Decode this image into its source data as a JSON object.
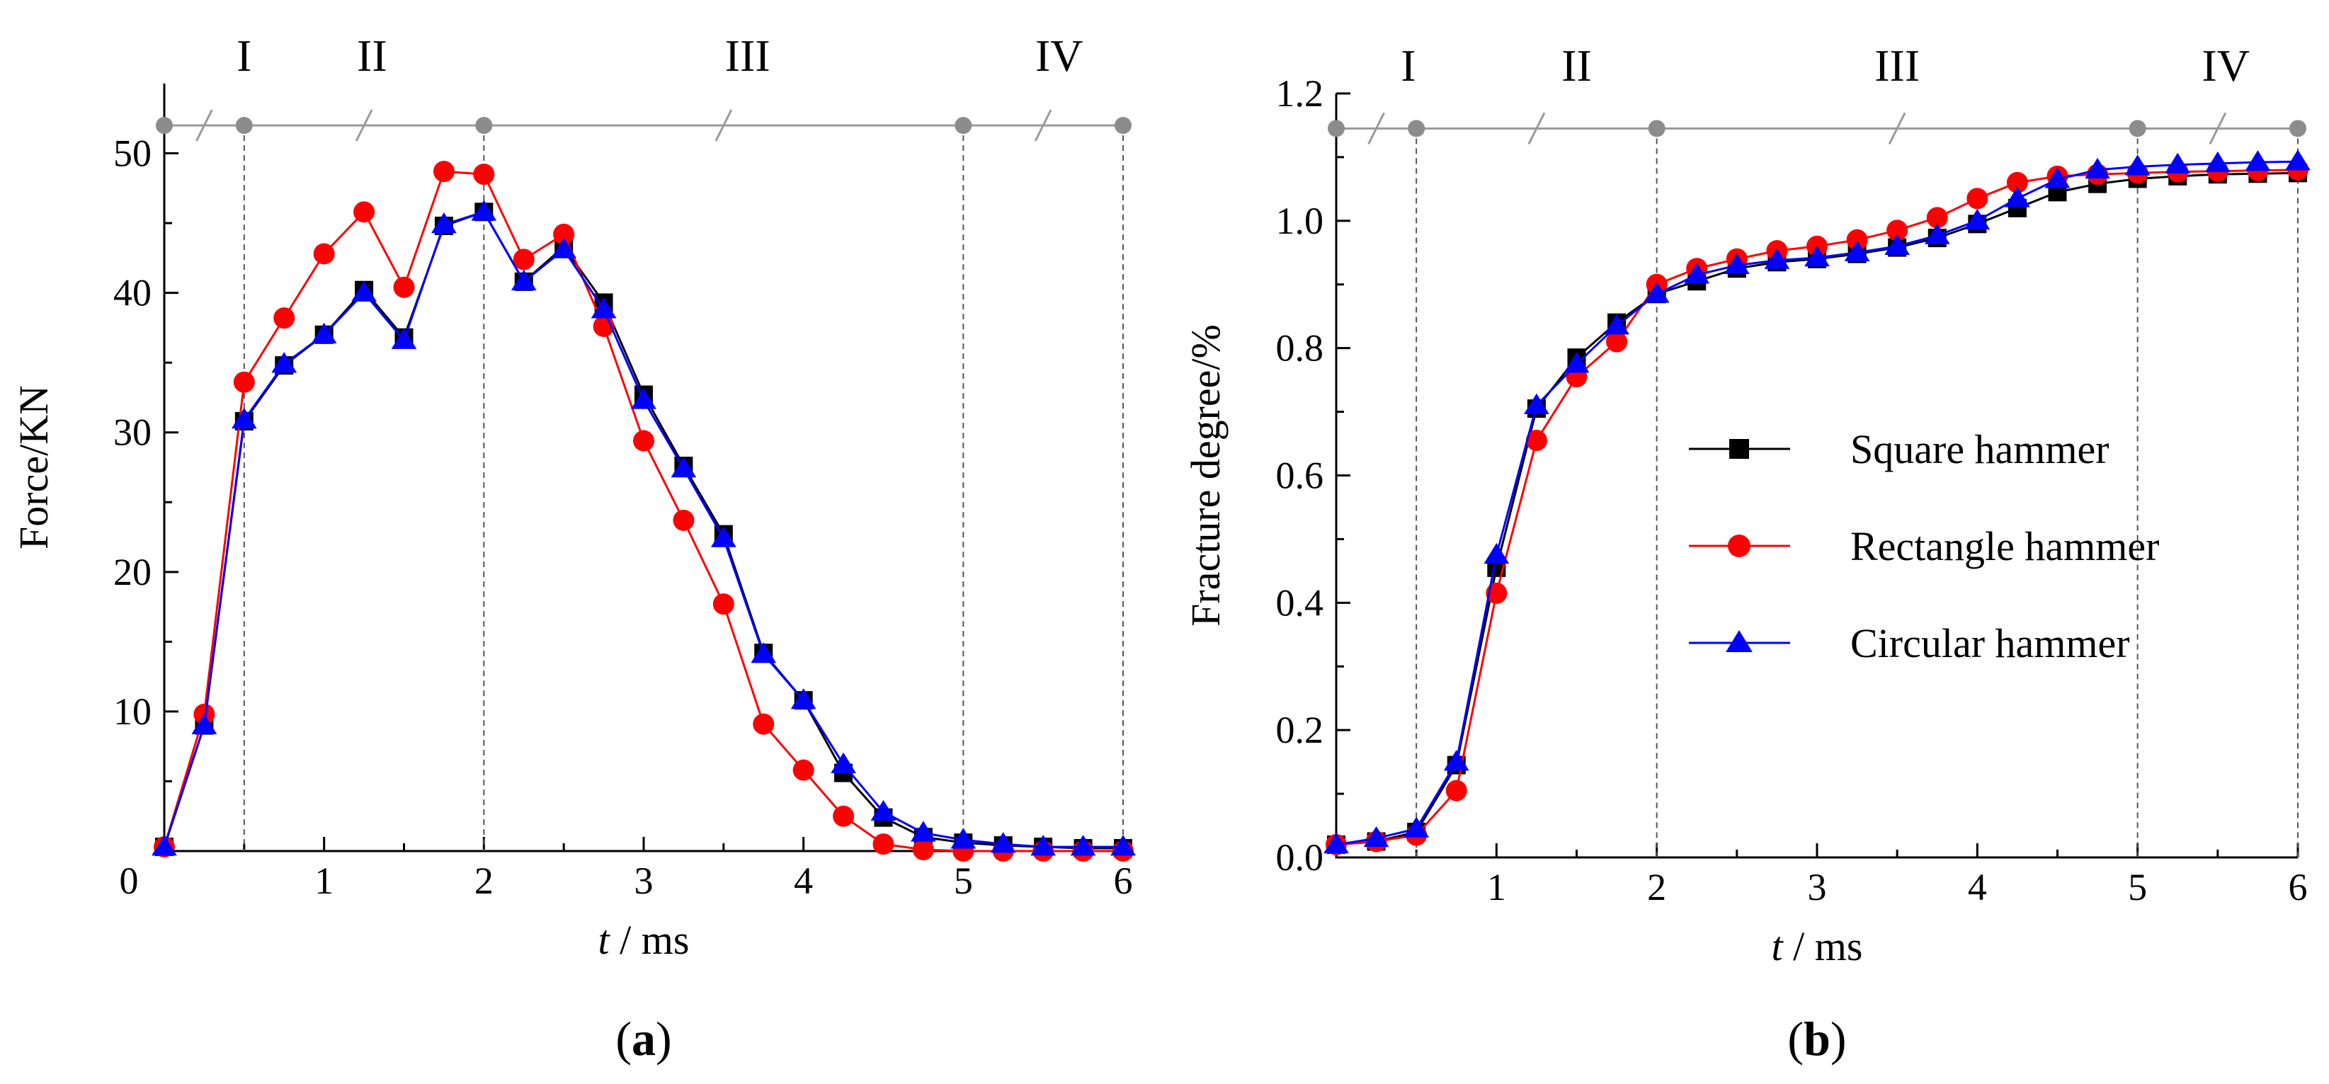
{
  "chart_data": [
    {
      "type": "line",
      "panel_label": "a",
      "title": "",
      "xlabel_italic": "t",
      "xlabel_unit": " / ms",
      "ylabel": "Force/KN",
      "xlim": [
        0,
        6
      ],
      "ylim": [
        0,
        55
      ],
      "x_ticks": [
        1,
        2,
        3,
        4,
        5,
        6
      ],
      "y_ticks": [
        10,
        20,
        30,
        40,
        50
      ],
      "origin_label": "0",
      "stage_boundaries": [
        0,
        0.5,
        2,
        5,
        6
      ],
      "stage_line_value": 52,
      "stages": [
        {
          "label": "I",
          "center": 0.5
        },
        {
          "label": "II",
          "center": 1.3
        },
        {
          "label": "III",
          "center": 3.65
        },
        {
          "label": "IV",
          "center": 5.6
        }
      ],
      "x": [
        0,
        0.25,
        0.5,
        0.75,
        1.0,
        1.25,
        1.5,
        1.75,
        2.0,
        2.25,
        2.5,
        2.75,
        3.0,
        3.25,
        3.5,
        3.75,
        4.0,
        4.25,
        4.5,
        4.75,
        5.0,
        5.25,
        5.5,
        5.75,
        6.0
      ],
      "series": [
        {
          "name": "Square hammer",
          "color": "#000000",
          "marker": "square",
          "values": [
            0.3,
            9.0,
            30.8,
            34.8,
            37.0,
            40.2,
            36.8,
            44.8,
            45.8,
            40.8,
            43.3,
            39.3,
            32.7,
            27.6,
            22.7,
            14.2,
            10.8,
            5.6,
            2.4,
            1.0,
            0.6,
            0.4,
            0.3,
            0.2,
            0.2
          ]
        },
        {
          "name": "Rectangle hammer",
          "color": "#ff0000",
          "marker": "circle",
          "values": [
            0.3,
            9.8,
            33.6,
            38.2,
            42.8,
            45.8,
            40.4,
            48.7,
            48.5,
            42.4,
            44.2,
            37.6,
            29.4,
            23.7,
            17.7,
            9.1,
            5.8,
            2.5,
            0.5,
            0.1,
            0.0,
            0.0,
            0.0,
            0.0,
            0.0
          ]
        },
        {
          "name": "Circular hammer",
          "color": "#0000ff",
          "marker": "triangle",
          "values": [
            0.3,
            9.0,
            30.9,
            34.9,
            37.0,
            40.0,
            36.6,
            44.9,
            45.8,
            40.8,
            43.1,
            38.8,
            32.3,
            27.4,
            22.4,
            14.1,
            10.8,
            6.2,
            2.8,
            1.3,
            0.8,
            0.5,
            0.3,
            0.3,
            0.3
          ]
        }
      ]
    },
    {
      "type": "line",
      "panel_label": "b",
      "title": "",
      "xlabel_italic": "t",
      "xlabel_unit": " / ms",
      "ylabel": "Fracture degree/%",
      "xlim": [
        0,
        6
      ],
      "ylim": [
        0,
        1.2
      ],
      "x_ticks": [
        1,
        2,
        3,
        4,
        5,
        6
      ],
      "y_ticks": [
        "0.0",
        "0.2",
        "0.4",
        "0.6",
        "0.8",
        "1.0",
        "1.2"
      ],
      "stage_boundaries": [
        0,
        0.5,
        2,
        5,
        6
      ],
      "stage_line_value": 1.145,
      "stages": [
        {
          "label": "I",
          "center": 0.45
        },
        {
          "label": "II",
          "center": 1.5
        },
        {
          "label": "III",
          "center": 3.5
        },
        {
          "label": "IV",
          "center": 5.55
        }
      ],
      "legend_position": "center-right",
      "x": [
        0,
        0.25,
        0.5,
        0.75,
        1.0,
        1.25,
        1.5,
        1.75,
        2.0,
        2.25,
        2.5,
        2.75,
        3.0,
        3.25,
        3.5,
        3.75,
        4.0,
        4.25,
        4.5,
        4.75,
        5.0,
        5.25,
        5.5,
        5.75,
        6.0
      ],
      "series": [
        {
          "name": "Square hammer",
          "color": "#000000",
          "marker": "square",
          "values": [
            0.02,
            0.025,
            0.04,
            0.145,
            0.455,
            0.705,
            0.785,
            0.84,
            0.885,
            0.905,
            0.925,
            0.935,
            0.94,
            0.948,
            0.958,
            0.973,
            0.995,
            1.02,
            1.045,
            1.058,
            1.066,
            1.07,
            1.073,
            1.074,
            1.075
          ]
        },
        {
          "name": "Rectangle hammer",
          "color": "#ff0000",
          "marker": "circle",
          "values": [
            0.02,
            0.025,
            0.035,
            0.105,
            0.415,
            0.655,
            0.755,
            0.81,
            0.9,
            0.925,
            0.94,
            0.953,
            0.96,
            0.97,
            0.985,
            1.005,
            1.035,
            1.06,
            1.07,
            1.073,
            1.075,
            1.077,
            1.078,
            1.079,
            1.08
          ]
        },
        {
          "name": "Circular hammer",
          "color": "#0000ff",
          "marker": "triangle",
          "values": [
            0.02,
            0.03,
            0.045,
            0.15,
            0.475,
            0.71,
            0.775,
            0.835,
            0.885,
            0.915,
            0.93,
            0.938,
            0.942,
            0.95,
            0.96,
            0.977,
            1.0,
            1.035,
            1.065,
            1.08,
            1.085,
            1.088,
            1.09,
            1.092,
            1.093
          ]
        }
      ]
    }
  ]
}
